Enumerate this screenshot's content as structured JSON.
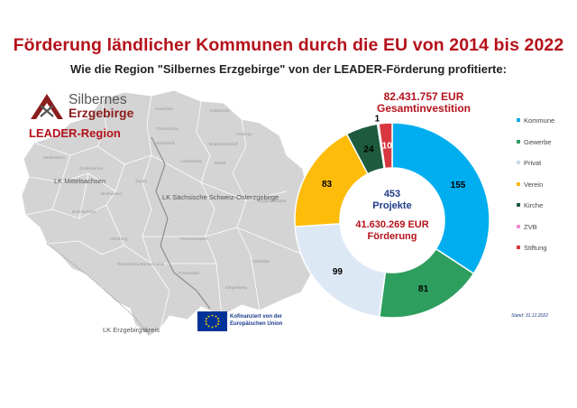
{
  "header": {
    "title": "Förderung ländlicher Kommunen durch die EU von 2014 bis 2022",
    "subtitle": "Wie die Region \"Silbernes Erzgebirge\" von der LEADER-Förderung profitierte:"
  },
  "logo": {
    "line1": "Silbernes",
    "line2": "Erzgebirge",
    "line3": "LEADER-Region"
  },
  "map": {
    "districts": [
      "LK Mittelsachsen",
      "LK Sächsische Schweiz-Osterzgebirge",
      "LK Erzgebirgskreis"
    ],
    "towns": [
      "Hainichen",
      "Halsbrücke",
      "Oberschöna",
      "Freiberg",
      "Bobritzsch",
      "Brand-Erbisdorf",
      "Weißenborn",
      "Großschirma",
      "Lichtenberg",
      "Mulda",
      "Sayda",
      "Neuhausen",
      "Dorfchemnitz",
      "Dippoldiswalde",
      "Altenberg",
      "Pretzschendorf",
      "Rechenberg-Bienenmühle",
      "Frauenstein",
      "Glashütte",
      "Klingenberg"
    ]
  },
  "cofinance": {
    "line1": "Kofinanziert von der",
    "line2": "Europäischen Union"
  },
  "chart_data": {
    "type": "pie",
    "hole": true,
    "title": "82.431.757 EUR Gesamtinvestition",
    "title_lines": [
      "82.431.757 EUR",
      "Gesamtinvestition"
    ],
    "center": {
      "projects_value": "453",
      "projects_label": "Projekte",
      "funding_value": "41.630.269 EUR",
      "funding_label": "Förderung"
    },
    "categories": [
      "Kommune",
      "Gewerbe",
      "Privat",
      "Verein",
      "Kirche",
      "ZVB",
      "Stiftung"
    ],
    "values": [
      155,
      81,
      99,
      83,
      24,
      1,
      10
    ],
    "colors": [
      "#00aeef",
      "#2e9e5e",
      "#dde8f5",
      "#fdbb0a",
      "#1e5b3e",
      "#f08fd0",
      "#d8373f"
    ],
    "label_colors": [
      "#000000",
      "#000000",
      "#000000",
      "#000000",
      "#000000",
      "#000000",
      "#ffffff"
    ],
    "legend_position": "right",
    "note": "Stand: 31.12.2022"
  }
}
